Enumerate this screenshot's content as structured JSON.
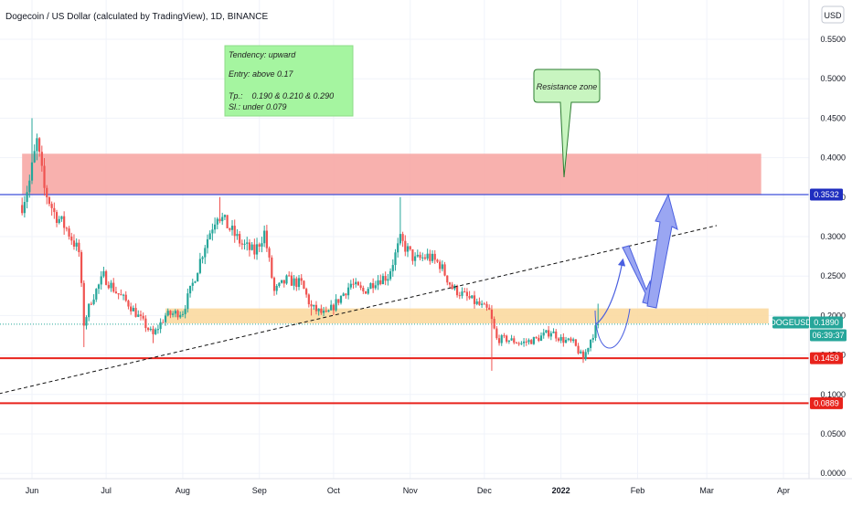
{
  "header": {
    "title": "Dogecoin / US Dollar (calculated by TradingView), 1D, BINANCE"
  },
  "currency_button": "USD",
  "annotation_box": {
    "lines": [
      "Tendency: upward",
      "Entry: above 0.17",
      "Tp.:    0.190 & 0.210 & 0.290",
      "Sl.: under 0.079"
    ],
    "color": "#a5f5a0"
  },
  "callout": {
    "text": "Resistance zone",
    "color": "#c8f5c0"
  },
  "price_tags": [
    {
      "label": "0.3532",
      "value": 0.3532,
      "color": "#1f2ebf"
    },
    {
      "label": "DOGEUSD",
      "value": 0.189,
      "color": "#26a69a"
    },
    {
      "label": "0.1890",
      "value": 0.189,
      "color": "#26a69a"
    },
    {
      "label": "06:39:37",
      "value": 0.189,
      "color": "#26a69a"
    },
    {
      "label": "0.1459",
      "value": 0.1459,
      "color": "#e8231c"
    },
    {
      "label": "0.0889",
      "value": 0.0889,
      "color": "#e8231c"
    }
  ],
  "chart_data": {
    "type": "candlestick",
    "title": "Dogecoin / US Dollar (calculated by TradingView), 1D, BINANCE",
    "ylim": [
      -0.01,
      0.57
    ],
    "y_ticks": [
      "0.5500",
      "0.5000",
      "0.4500",
      "0.4000",
      "0.3500",
      "0.3000",
      "0.2500",
      "0.2000",
      "0.1500",
      "0.1000",
      "0.0500",
      "0.0000"
    ],
    "y_tick_values": [
      0.55,
      0.5,
      0.45,
      0.4,
      0.35,
      0.3,
      0.25,
      0.2,
      0.15,
      0.1,
      0.05,
      0.0
    ],
    "x_ticks": [
      "Jun",
      "Jul",
      "Aug",
      "Sep",
      "Oct",
      "Nov",
      "Dec",
      "2022",
      "Feb",
      "Mar",
      "Apr"
    ],
    "x_tick_dates": [
      "2021-06-01",
      "2021-07-01",
      "2021-08-01",
      "2021-09-01",
      "2021-10-01",
      "2021-11-01",
      "2021-12-01",
      "2022-01-01",
      "2022-02-01",
      "2022-03-01",
      "2022-04-01"
    ],
    "colors": {
      "up": "#26a69a",
      "down": "#ef5350",
      "resistance_zone": "#f7a8a5",
      "support_zone": "#fbd9a0",
      "trendline": "#111111",
      "level_line_blue": "#3f4fd9",
      "level_line_red": "#e8231c",
      "projection": "#4a5fe0"
    },
    "resistance_zone": {
      "from_date": "2021-05-28",
      "to_date": "2022-03-23",
      "low": 0.3532,
      "high": 0.405
    },
    "support_zone": {
      "from_date": "2021-07-25",
      "to_date": "2022-03-26",
      "low": 0.19,
      "high": 0.209
    },
    "horizontal_levels": [
      {
        "value": 0.3532,
        "color": "#3f4fd9"
      },
      {
        "value": 0.1459,
        "color": "#e8231c"
      },
      {
        "value": 0.0889,
        "color": "#e8231c"
      }
    ],
    "trendline": {
      "from": {
        "date": "2021-05-01",
        "value": 0.088
      },
      "to": {
        "date": "2022-03-05",
        "value": 0.314
      }
    },
    "last_price": 0.189,
    "anchors": [
      [
        "2021-05-28",
        0.34
      ],
      [
        "2021-05-31",
        0.37
      ],
      [
        "2021-06-03",
        0.42
      ],
      [
        "2021-06-06",
        0.36
      ],
      [
        "2021-06-10",
        0.33
      ],
      [
        "2021-06-15",
        0.31
      ],
      [
        "2021-06-20",
        0.28
      ],
      [
        "2021-06-22",
        0.19
      ],
      [
        "2021-06-25",
        0.22
      ],
      [
        "2021-06-30",
        0.25
      ],
      [
        "2021-07-05",
        0.23
      ],
      [
        "2021-07-10",
        0.215
      ],
      [
        "2021-07-15",
        0.195
      ],
      [
        "2021-07-20",
        0.175
      ],
      [
        "2021-07-25",
        0.2
      ],
      [
        "2021-08-01",
        0.205
      ],
      [
        "2021-08-05",
        0.24
      ],
      [
        "2021-08-10",
        0.29
      ],
      [
        "2021-08-15",
        0.33
      ],
      [
        "2021-08-20",
        0.31
      ],
      [
        "2021-08-25",
        0.29
      ],
      [
        "2021-08-30",
        0.28
      ],
      [
        "2021-09-03",
        0.305
      ],
      [
        "2021-09-07",
        0.23
      ],
      [
        "2021-09-12",
        0.245
      ],
      [
        "2021-09-18",
        0.24
      ],
      [
        "2021-09-22",
        0.21
      ],
      [
        "2021-09-28",
        0.2
      ],
      [
        "2021-10-03",
        0.22
      ],
      [
        "2021-10-08",
        0.24
      ],
      [
        "2021-10-13",
        0.23
      ],
      [
        "2021-10-18",
        0.245
      ],
      [
        "2021-10-23",
        0.25
      ],
      [
        "2021-10-28",
        0.295
      ],
      [
        "2021-11-03",
        0.27
      ],
      [
        "2021-11-08",
        0.275
      ],
      [
        "2021-11-13",
        0.265
      ],
      [
        "2021-11-18",
        0.235
      ],
      [
        "2021-11-23",
        0.225
      ],
      [
        "2021-11-28",
        0.215
      ],
      [
        "2021-12-03",
        0.205
      ],
      [
        "2021-12-06",
        0.17
      ],
      [
        "2021-12-10",
        0.17
      ],
      [
        "2021-12-16",
        0.165
      ],
      [
        "2021-12-22",
        0.17
      ],
      [
        "2021-12-28",
        0.18
      ],
      [
        "2022-01-01",
        0.17
      ],
      [
        "2022-01-06",
        0.165
      ],
      [
        "2022-01-10",
        0.145
      ],
      [
        "2022-01-13",
        0.17
      ],
      [
        "2022-01-16",
        0.19
      ]
    ],
    "price_lows": [
      [
        "2021-06-22",
        0.16
      ],
      [
        "2021-07-20",
        0.165
      ],
      [
        "2021-09-22",
        0.2
      ],
      [
        "2021-12-04",
        0.13
      ],
      [
        "2022-01-10",
        0.14
      ]
    ],
    "price_highs": [
      [
        "2021-06-01",
        0.45
      ],
      [
        "2021-08-16",
        0.35
      ],
      [
        "2021-10-28",
        0.35
      ],
      [
        "2022-01-16",
        0.215
      ]
    ]
  }
}
